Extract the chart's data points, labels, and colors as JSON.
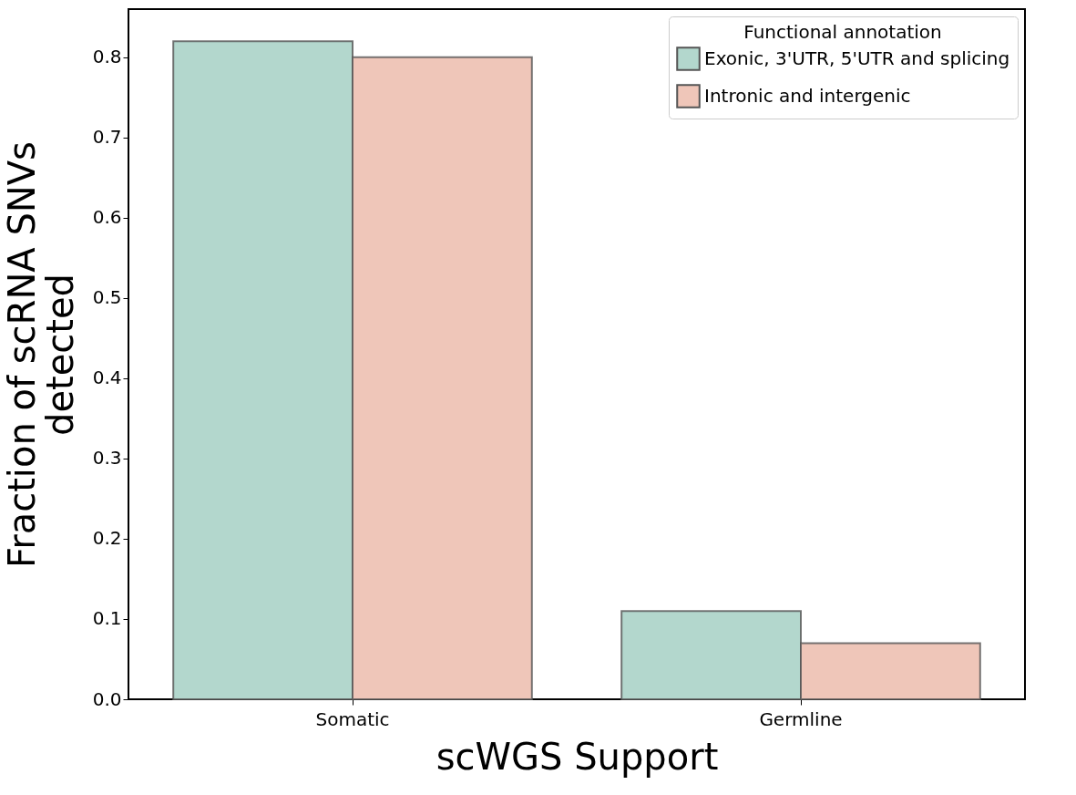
{
  "chart_data": {
    "type": "bar",
    "xlabel": "scWGS Support",
    "ylabel": "Fraction of scRNA SNVs detected",
    "legend_title": "Functional annotation",
    "legend": "top right",
    "categories": [
      "Somatic",
      "Germline"
    ],
    "ylim": [
      0,
      0.86
    ],
    "yticks": [
      {
        "value": 0,
        "label": "0.0"
      },
      0.1,
      0.2,
      0.3,
      0.4,
      0.5,
      0.6,
      0.7,
      0.8
    ],
    "series": [
      {
        "name": "Exonic, 3'UTR, 5'UTR and splicing",
        "color": "#b3d7cd",
        "values": [
          0.82,
          0.11
        ]
      },
      {
        "name": "Intronic and intergenic",
        "color": "#efc6b9",
        "values": [
          0.8,
          0.07
        ]
      }
    ]
  }
}
